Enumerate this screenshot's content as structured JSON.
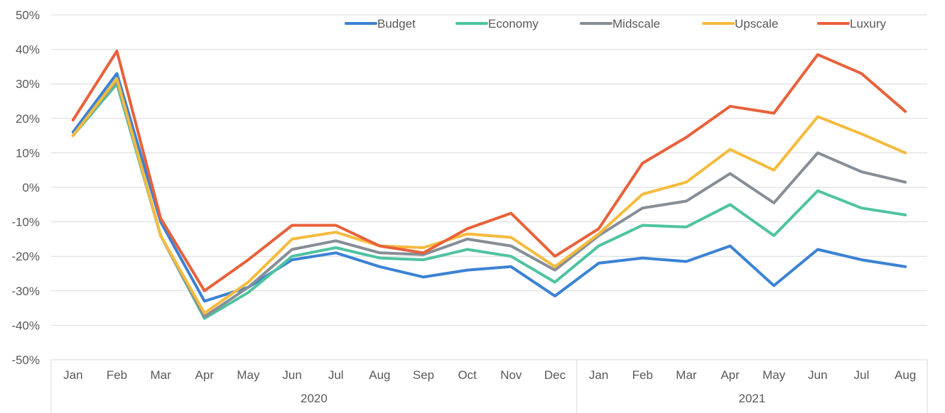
{
  "chart_data": {
    "type": "line",
    "title": "",
    "xlabel": "",
    "ylabel": "",
    "ylim": [
      -50,
      50
    ],
    "ytick_values": [
      -50,
      -40,
      -30,
      -20,
      -10,
      0,
      10,
      20,
      30,
      40,
      50
    ],
    "ytick_labels": [
      "-50%",
      "-40%",
      "-30%",
      "-20%",
      "-10%",
      "0%",
      "10%",
      "20%",
      "30%",
      "40%",
      "50%"
    ],
    "categories": [
      "Jan",
      "Feb",
      "Mar",
      "Apr",
      "May",
      "Jun",
      "Jul",
      "Aug",
      "Sep",
      "Oct",
      "Nov",
      "Dec",
      "Jan",
      "Feb",
      "Mar",
      "Apr",
      "May",
      "Jun",
      "Jul",
      "Aug"
    ],
    "year_groups": [
      {
        "label": "2020",
        "start": 0,
        "count": 12
      },
      {
        "label": "2021",
        "start": 12,
        "count": 8
      }
    ],
    "legend_position": "top-right",
    "grid": true,
    "series": [
      {
        "name": "Budget",
        "color": "#3b82d4",
        "values": [
          16,
          33,
          -10,
          -33,
          -29,
          -21,
          -19,
          -23,
          -26,
          -24,
          -23,
          -31.5,
          -22,
          -20.5,
          -21.5,
          -17,
          -28.5,
          -18,
          -21,
          -23
        ]
      },
      {
        "name": "Economy",
        "color": "#4fc3a1",
        "values": [
          15,
          30,
          -14,
          -38,
          -30.5,
          -20,
          -17.5,
          -20.5,
          -21,
          -18,
          -20,
          -27.5,
          -17,
          -11,
          -11.5,
          -5,
          -14,
          -1,
          -6,
          -8
        ]
      },
      {
        "name": "Midscale",
        "color": "#868e96",
        "values": [
          15,
          31,
          -14,
          -37.5,
          -29,
          -18,
          -15.5,
          -19,
          -19.5,
          -15,
          -17,
          -24,
          -14,
          -6,
          -4,
          4,
          -4.5,
          10,
          4.5,
          1.5
        ]
      },
      {
        "name": "Upscale",
        "color": "#f5bb3d",
        "values": [
          15,
          31.5,
          -14,
          -36.5,
          -27.5,
          -15,
          -13,
          -17,
          -17.5,
          -13.5,
          -14.5,
          -23,
          -13.5,
          -2,
          1.5,
          11,
          5,
          20.5,
          15.5,
          10
        ]
      },
      {
        "name": "Luxury",
        "color": "#e8613a",
        "values": [
          19.5,
          39.5,
          -9,
          -30,
          -21,
          -11,
          -11,
          -17,
          -19,
          -12,
          -7.5,
          -20,
          -12,
          7,
          14.5,
          23.5,
          21.5,
          38.5,
          33,
          22
        ]
      }
    ]
  }
}
